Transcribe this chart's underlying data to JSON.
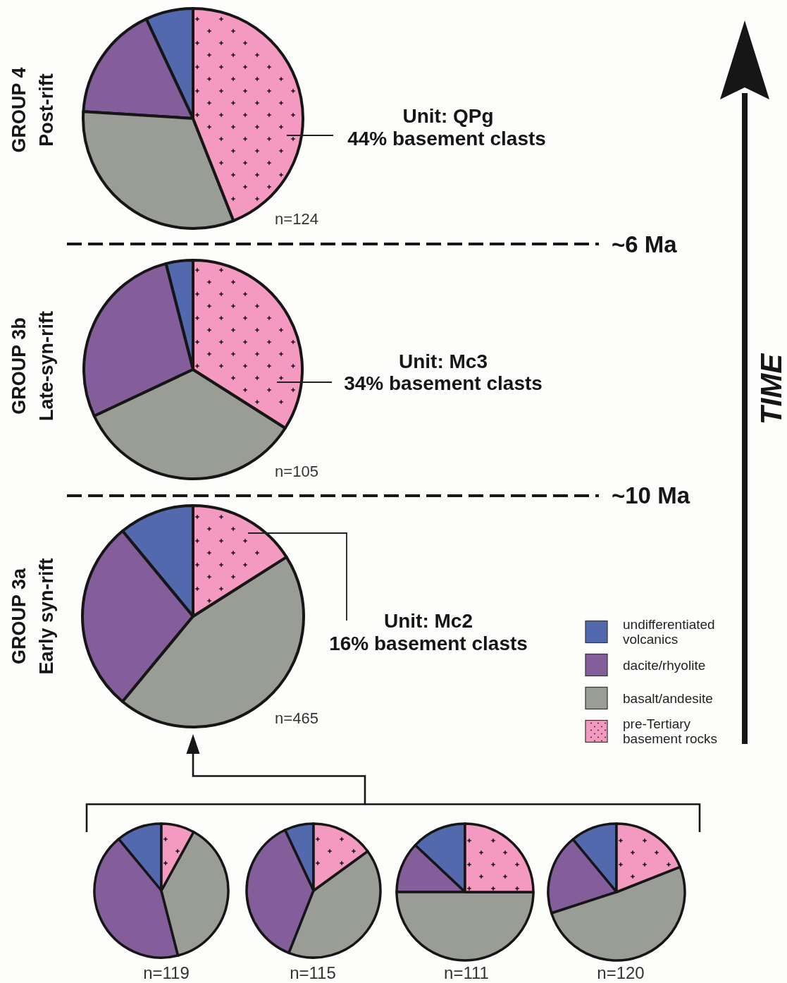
{
  "chart_data": [
    {
      "type": "pie",
      "title": "GROUP 4",
      "subtitle": "Post-rift",
      "categories": [
        null,
        null,
        null,
        null
      ],
      "values": [
        7,
        17,
        32,
        44
      ],
      "colors": [
        "#5269ad",
        "#845d9b",
        "#999d96",
        "#f49ac1"
      ],
      "annotations": [
        "Unit: QPg",
        "44% basement clasts",
        "n=124",
        "~6 Ma"
      ]
    },
    {
      "type": "pie",
      "title": "GROUP 3b",
      "subtitle": "Late-syn-rift",
      "categories": [
        null,
        null,
        null,
        null
      ],
      "values": [
        4,
        28,
        34,
        34
      ],
      "colors": [
        "#5269ad",
        "#845d9b",
        "#999d96",
        "#f49ac1"
      ],
      "annotations": [
        "Unit: Mc3",
        "34% basement clasts",
        "n=105",
        "~10 Ma"
      ]
    },
    {
      "type": "pie",
      "title": "GROUP 3a",
      "subtitle": "Early syn-rift",
      "categories": [
        "undifferentiated volcanics",
        "dacite/rhyolite",
        "basalt/andesite",
        "pre-Tertiary basement rocks"
      ],
      "values": [
        11,
        28,
        45,
        16
      ],
      "colors": [
        "#5269ad",
        "#845d9b",
        "#999d96",
        "#f49ac1"
      ],
      "annotations": [
        "Unit: Mc2",
        "16% basement clasts",
        "n=465"
      ],
      "legend": "right"
    },
    {
      "type": "pie",
      "categories": [
        null,
        null,
        null,
        null
      ],
      "values": [
        11,
        43,
        38,
        8
      ],
      "colors": [
        "#5269ad",
        "#845d9b",
        "#999d96",
        "#f49ac1"
      ],
      "annotations": [
        "n=119"
      ]
    },
    {
      "type": "pie",
      "categories": [
        null,
        null,
        null,
        null
      ],
      "values": [
        7,
        37,
        41,
        15
      ],
      "colors": [
        "#5269ad",
        "#845d9b",
        "#999d96",
        "#f49ac1"
      ],
      "annotations": [
        "n=115"
      ]
    },
    {
      "type": "pie",
      "categories": [
        null,
        null,
        null,
        null
      ],
      "values": [
        13,
        12,
        50,
        25
      ],
      "colors": [
        "#5269ad",
        "#845d9b",
        "#999d96",
        "#f49ac1"
      ],
      "annotations": [
        "n=111"
      ]
    },
    {
      "type": "pie",
      "categories": [
        null,
        null,
        null,
        null
      ],
      "values": [
        11,
        19,
        51,
        19
      ],
      "colors": [
        "#5269ad",
        "#845d9b",
        "#999d96",
        "#f49ac1"
      ],
      "annotations": [
        "n=120"
      ]
    },
    {
      "type": "other",
      "annotations": [
        "TIME"
      ]
    }
  ]
}
